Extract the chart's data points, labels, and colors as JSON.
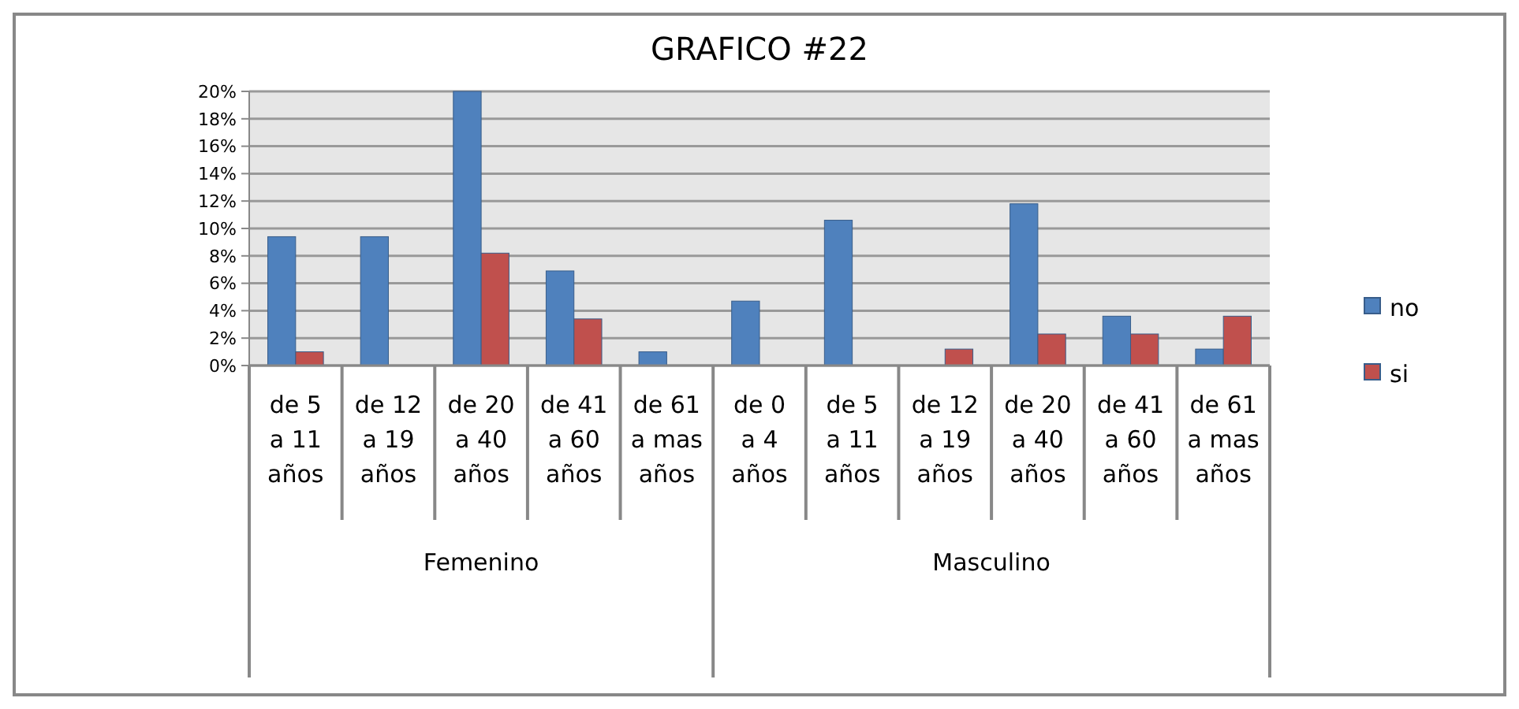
{
  "chart_data": {
    "type": "bar",
    "title": "GRAFICO #22",
    "categories": [
      "de 5 a 11 años",
      "de 12 a 19 años",
      "de 20 a 40 años",
      "de 41 a 60 años",
      "de 61 a mas años",
      "de 0 a 4 años",
      "de 5 a 11 años",
      "de 12 a 19 años",
      "de 20 a 40 años",
      "de 41 a 60 años",
      "de 61 a mas años"
    ],
    "series": [
      {
        "name": "no",
        "color": "#4f81bd",
        "values": [
          9.4,
          9.4,
          20,
          6.9,
          1,
          4.7,
          10.6,
          0,
          11.8,
          3.6,
          1.2
        ]
      },
      {
        "name": "si",
        "color": "#c0504d",
        "values": [
          1,
          0,
          8.2,
          3.4,
          0,
          0,
          0,
          1.2,
          2.3,
          2.3,
          3.6
        ]
      }
    ],
    "ylim": [
      0,
      20
    ],
    "yticks": [
      {
        "value": 0,
        "label": "0%"
      },
      {
        "value": 2,
        "label": "2%"
      },
      {
        "value": 4,
        "label": "4%"
      },
      {
        "value": 6,
        "label": "6%"
      },
      {
        "value": 8,
        "label": "8%"
      },
      {
        "value": 10,
        "label": "10%"
      },
      {
        "value": 12,
        "label": "12%"
      },
      {
        "value": 14,
        "label": "14%"
      },
      {
        "value": 16,
        "label": "16%"
      },
      {
        "value": 18,
        "label": "18%"
      },
      {
        "value": 20,
        "label": "20%"
      }
    ],
    "annotations": [
      "Femenino",
      "Masculino"
    ],
    "grid": true,
    "legend": "right"
  }
}
